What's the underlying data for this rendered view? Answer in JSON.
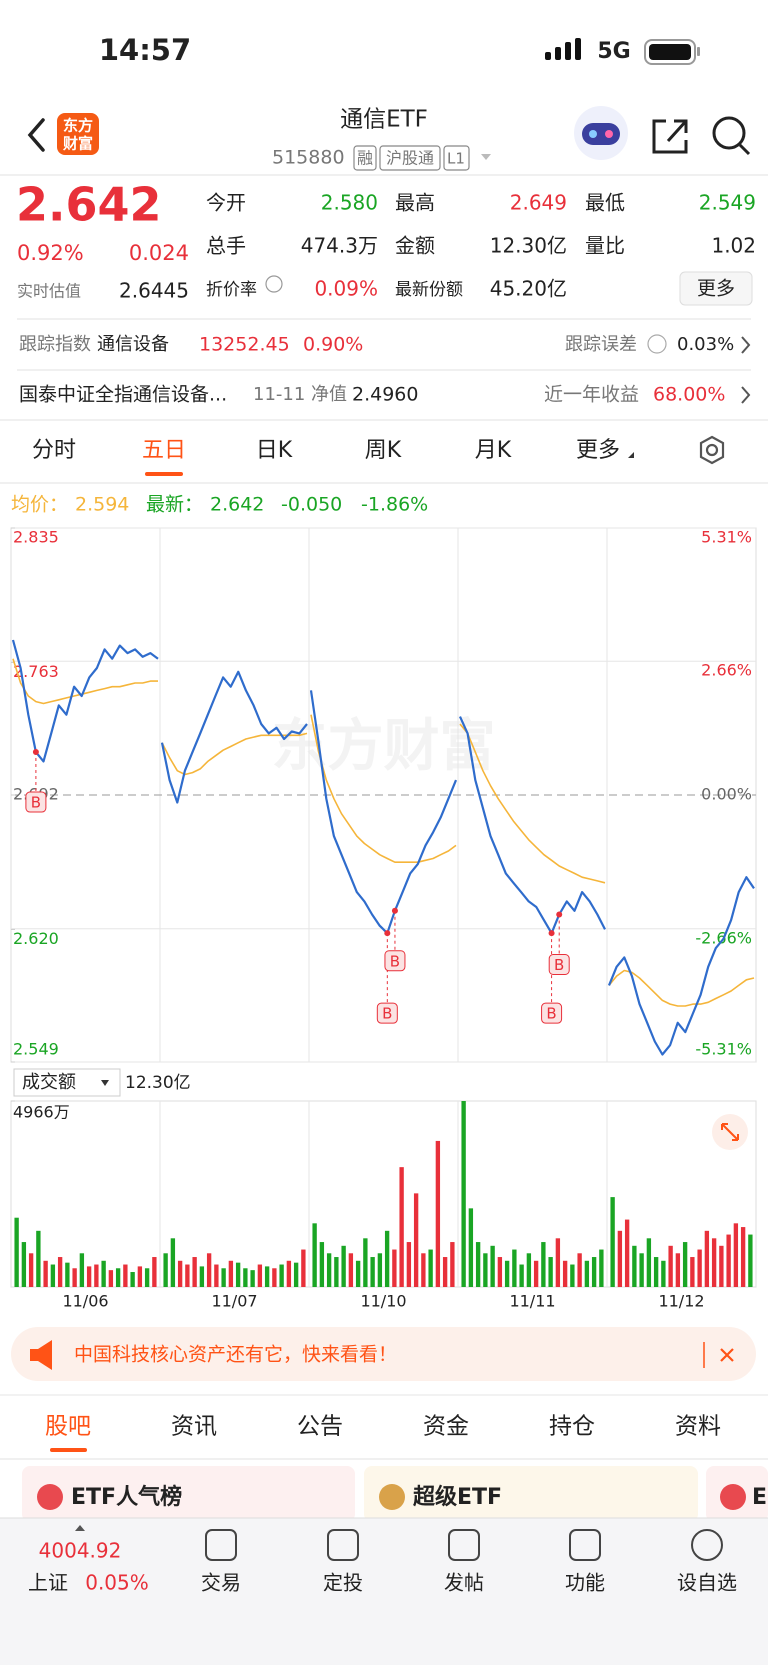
{
  "status": {
    "time": "14:57",
    "network": "5G"
  },
  "header": {
    "logo": [
      "东方",
      "财富"
    ],
    "title": "通信ETF",
    "code": "515880",
    "badges": [
      "融",
      "沪股通",
      "L1"
    ]
  },
  "quote": {
    "price": "2.642",
    "pct": "0.92%",
    "change": "0.024",
    "estimate_label": "实时估值",
    "estimate": "2.6445",
    "fields": [
      [
        "今开",
        "2.580"
      ],
      [
        "最高",
        "2.649"
      ],
      [
        "最低",
        "2.549"
      ],
      [
        "总手",
        "474.3万"
      ],
      [
        "金额",
        "12.30亿"
      ],
      [
        "量比",
        "1.02"
      ],
      [
        "折价率",
        "0.09%"
      ],
      [
        "最新份额",
        "45.20亿"
      ]
    ],
    "more": "更多"
  },
  "tracking": {
    "label": "跟踪指数",
    "index": "通信设备",
    "value": "13252.45",
    "pct": "0.90%",
    "error_label": "跟踪误差",
    "error": "0.03%"
  },
  "fund": {
    "name": "国泰中证全指通信设备...",
    "nav_label": "11-11 净值",
    "nav": "2.4960",
    "ret_label": "近一年收益",
    "ret": "68.00%"
  },
  "tabs": [
    "分时",
    "五日",
    "日K",
    "周K",
    "月K",
    "更多"
  ],
  "chart_data": [
    {
      "type": "line",
      "watermark": "东方财富",
      "legend": [
        "均价：",
        "2.594",
        "最新：",
        "2.642",
        "-0.050",
        "-1.86%"
      ],
      "ylim": [
        2.549,
        2.835
      ],
      "yticks": [
        2.835,
        2.763,
        2.692,
        {
          "value": 2.62,
          "label": "2.620"
        },
        2.549
      ],
      "y2lim": [
        -5.31,
        5.31
      ],
      "y2ticks": [
        {
          "value": 5.31,
          "label": "5.31%"
        },
        {
          "value": 2.66,
          "label": "2.66%"
        },
        {
          "value": 0,
          "label": "0.00%"
        },
        {
          "value": -2.66,
          "label": "-2.66%"
        },
        {
          "value": -5.31,
          "label": "-5.31%"
        }
      ],
      "colors": {
        "price": "#2f6ccc",
        "avg": "#f5b53a",
        "up": "#e8303a",
        "down": "#1aa524",
        "flat": "#666666"
      },
      "days": [
        {
          "price": [
            2.775,
            2.76,
            2.735,
            2.715,
            2.71,
            2.725,
            2.74,
            2.735,
            2.75,
            2.745,
            2.755,
            2.76,
            2.77,
            2.765,
            2.772,
            2.768,
            2.77,
            2.766,
            2.768,
            2.765
          ],
          "avg": [
            2.765,
            2.752,
            2.745,
            2.742,
            2.741,
            2.742,
            2.743,
            2.744,
            2.745,
            2.746,
            2.747,
            2.748,
            2.749,
            2.75,
            2.75,
            2.751,
            2.752,
            2.752,
            2.753,
            2.753
          ]
        },
        {
          "price": [
            2.72,
            2.7,
            2.688,
            2.705,
            2.715,
            2.725,
            2.735,
            2.745,
            2.755,
            2.75,
            2.758,
            2.748,
            2.74,
            2.73,
            2.725,
            2.728,
            2.722,
            2.726,
            2.725,
            2.73
          ],
          "avg": [
            2.72,
            2.712,
            2.705,
            2.703,
            2.704,
            2.706,
            2.71,
            2.713,
            2.716,
            2.718,
            2.72,
            2.722,
            2.723,
            2.724,
            2.724,
            2.724,
            2.724,
            2.724,
            2.724,
            2.725
          ]
        },
        {
          "price": [
            2.748,
            2.72,
            2.69,
            2.67,
            2.66,
            2.65,
            2.64,
            2.635,
            2.628,
            2.622,
            2.618,
            2.63,
            2.64,
            2.65,
            2.655,
            2.665,
            2.672,
            2.68,
            2.69,
            2.7
          ],
          "avg": [
            2.735,
            2.715,
            2.7,
            2.69,
            2.682,
            2.676,
            2.67,
            2.666,
            2.663,
            2.66,
            2.658,
            2.656,
            2.656,
            2.656,
            2.656,
            2.657,
            2.658,
            2.66,
            2.662,
            2.665
          ]
        },
        {
          "price": [
            2.734,
            2.725,
            2.7,
            2.685,
            2.67,
            2.66,
            2.65,
            2.645,
            2.64,
            2.635,
            2.632,
            2.625,
            2.618,
            2.628,
            2.635,
            2.63,
            2.64,
            2.635,
            2.628,
            2.62
          ],
          "avg": [
            2.73,
            2.725,
            2.715,
            2.705,
            2.697,
            2.69,
            2.684,
            2.678,
            2.673,
            2.668,
            2.664,
            2.66,
            2.657,
            2.654,
            2.652,
            2.65,
            2.648,
            2.647,
            2.646,
            2.645
          ]
        },
        {
          "price": [
            2.59,
            2.6,
            2.605,
            2.595,
            2.58,
            2.57,
            2.56,
            2.553,
            2.558,
            2.57,
            2.565,
            2.575,
            2.585,
            2.6,
            2.61,
            2.615,
            2.625,
            2.64,
            2.648,
            2.642
          ],
          "avg": [
            2.59,
            2.595,
            2.598,
            2.597,
            2.594,
            2.59,
            2.586,
            2.582,
            2.58,
            2.579,
            2.579,
            2.58,
            2.58,
            2.581,
            2.583,
            2.585,
            2.587,
            2.59,
            2.593,
            2.594
          ]
        }
      ],
      "annotations": [
        {
          "text": "B",
          "day": 0,
          "index": 3
        },
        {
          "text": "B",
          "day": 2,
          "index": 10
        },
        {
          "text": "B",
          "day": 2,
          "index": 11
        },
        {
          "text": "B",
          "day": 3,
          "index": 12
        },
        {
          "text": "B",
          "day": 3,
          "index": 13
        }
      ]
    },
    {
      "type": "bar",
      "label": "成交额",
      "total": "12.30亿",
      "categories": [
        "11/06",
        "11/07",
        "11/10",
        "11/11",
        "11/12"
      ],
      "ylim": [
        0,
        4966
      ],
      "yticks": [
        {
          "value": 4966,
          "label": "4966万"
        }
      ],
      "values": [
        [
          1850,
          1200,
          900,
          1500,
          700,
          600,
          800,
          650,
          500,
          900,
          550,
          600,
          700,
          450,
          500,
          600,
          400,
          550,
          500,
          800
        ],
        [
          900,
          1300,
          700,
          600,
          800,
          550,
          900,
          600,
          500,
          700,
          650,
          500,
          450,
          600,
          550,
          500,
          600,
          700,
          650,
          1000
        ],
        [
          1700,
          1200,
          900,
          800,
          1100,
          900,
          700,
          1300,
          800,
          900,
          1500,
          1000,
          3200,
          1200,
          2500,
          900,
          1000,
          3900,
          800,
          1200
        ],
        [
          4966,
          2100,
          1200,
          900,
          1100,
          800,
          700,
          1000,
          600,
          900,
          700,
          1200,
          800,
          1300,
          700,
          600,
          900,
          700,
          800,
          1000
        ],
        [
          2400,
          1500,
          1800,
          1100,
          900,
          1300,
          800,
          700,
          1100,
          900,
          1200,
          800,
          1000,
          1500,
          1300,
          1100,
          1400,
          1700,
          1600,
          1400
        ]
      ],
      "colors": [
        [
          "#1aa524",
          "#1aa524",
          "#e8303a",
          "#1aa524",
          "#e8303a",
          "#1aa524",
          "#e8303a",
          "#1aa524",
          "#e8303a",
          "#1aa524",
          "#e8303a",
          "#e8303a",
          "#1aa524",
          "#e8303a",
          "#1aa524",
          "#e8303a",
          "#1aa524",
          "#e8303a",
          "#1aa524",
          "#e8303a"
        ],
        [
          "#1aa524",
          "#1aa524",
          "#e8303a",
          "#e8303a",
          "#e8303a",
          "#1aa524",
          "#e8303a",
          "#e8303a",
          "#1aa524",
          "#e8303a",
          "#1aa524",
          "#1aa524",
          "#1aa524",
          "#e8303a",
          "#1aa524",
          "#e8303a",
          "#1aa524",
          "#e8303a",
          "#1aa524",
          "#e8303a"
        ],
        [
          "#1aa524",
          "#1aa524",
          "#1aa524",
          "#1aa524",
          "#1aa524",
          "#e8303a",
          "#1aa524",
          "#1aa524",
          "#1aa524",
          "#1aa524",
          "#1aa524",
          "#e8303a",
          "#e8303a",
          "#e8303a",
          "#e8303a",
          "#e8303a",
          "#1aa524",
          "#e8303a",
          "#e8303a",
          "#e8303a"
        ],
        [
          "#1aa524",
          "#1aa524",
          "#1aa524",
          "#1aa524",
          "#1aa524",
          "#e8303a",
          "#1aa524",
          "#1aa524",
          "#1aa524",
          "#1aa524",
          "#e8303a",
          "#1aa524",
          "#1aa524",
          "#e8303a",
          "#e8303a",
          "#1aa524",
          "#e8303a",
          "#1aa524",
          "#1aa524",
          "#1aa524"
        ],
        [
          "#1aa524",
          "#e8303a",
          "#e8303a",
          "#1aa524",
          "#1aa524",
          "#1aa524",
          "#1aa524",
          "#1aa524",
          "#e8303a",
          "#e8303a",
          "#1aa524",
          "#e8303a",
          "#e8303a",
          "#e8303a",
          "#e8303a",
          "#e8303a",
          "#e8303a",
          "#e8303a",
          "#e8303a",
          "#1aa524"
        ]
      ]
    }
  ],
  "banner": {
    "text": "中国科技核心资产还有它，快来看看！"
  },
  "subtabs": [
    "股吧",
    "资讯",
    "公告",
    "资金",
    "持仓",
    "资料"
  ],
  "cards": [
    "ETF人气榜",
    "超级ETF",
    "E"
  ],
  "nav": {
    "index_value": "4004.92",
    "index_name": "上证",
    "index_pct": "0.05%",
    "items": [
      "交易",
      "定投",
      "发帖",
      "功能",
      "设自选"
    ]
  }
}
